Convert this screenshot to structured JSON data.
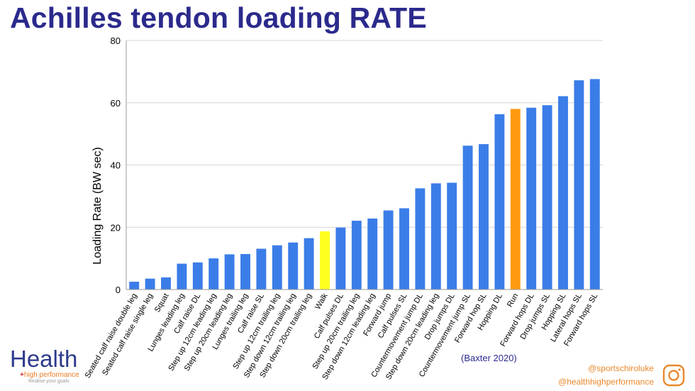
{
  "title": "Achilles tendon loading RATE",
  "citation": "(Baxter 2020)",
  "social": {
    "handle1": "@sportschiroluke",
    "handle2": "@healthhighperformance",
    "icon": "instagram-icon"
  },
  "logo": {
    "word": "Health",
    "sub": "high performance",
    "tagline": "Realise your goals"
  },
  "colors": {
    "bar": "#3b7de8",
    "walk": "#ffff1f",
    "run": "#ff9a10",
    "title": "#2b2a8c",
    "accent": "#e8892e"
  },
  "chart_data": {
    "type": "bar",
    "ylabel": "Loading Rate (BW sec)",
    "xlabel": "",
    "ylim": [
      0,
      80
    ],
    "yticks": [
      0,
      20,
      40,
      60,
      80
    ],
    "grid": true,
    "categories": [
      "Seated calf raise double leg",
      "Seated calf raise single leg",
      "Squat",
      "Lunges leading leg",
      "Calf raise DL",
      "Step up 12cm leading leg",
      "Step up 20cm leading leg",
      "Lunges trailing leg",
      "Calf raise SL",
      "Step up 12cm trailing leg",
      "Step down 12cm trailing leg",
      "Step down 20cm trailing leg",
      "Walk",
      "Calf pulses DL",
      "Step up 20cm trailing leg",
      "Step down 12cm leading leg",
      "Forward jump",
      "Calf pulses SL",
      "Countermovement jump DL",
      "Step down 20cm leading leg",
      "Drop jumps DL",
      "Countermovement jump SL",
      "Forward hop SL",
      "Hopping DL",
      "Run",
      "Forward hops DL",
      "Drop jumps SL",
      "Hopping SL",
      "Lateral hops SL",
      "Forward hops SL"
    ],
    "values": [
      2.5,
      3.5,
      3.9,
      8.3,
      8.7,
      10,
      11.3,
      11.4,
      13.1,
      14.2,
      15.1,
      16.5,
      18.7,
      19.9,
      22.1,
      22.8,
      25.4,
      26.1,
      32.5,
      34.1,
      34.3,
      46.2,
      46.7,
      56.3,
      58,
      58.4,
      59.2,
      62.1,
      67.2,
      67.6
    ],
    "highlight": {
      "Walk": "walk",
      "Run": "run"
    }
  }
}
